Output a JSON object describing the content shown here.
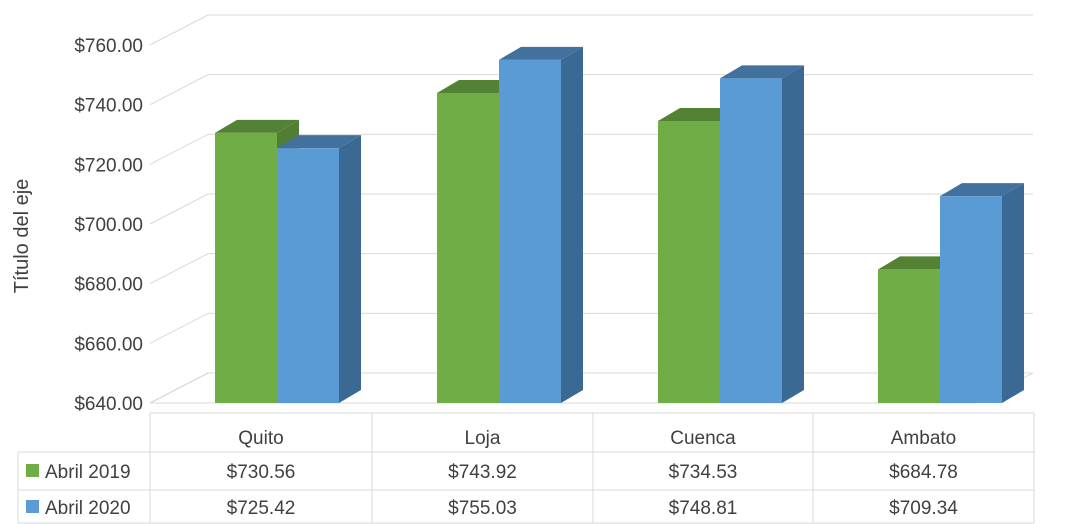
{
  "chart_data": {
    "type": "bar",
    "style": "3d-clustered-column-with-data-table",
    "categories": [
      "Quito",
      "Loja",
      "Cuenca",
      "Ambato"
    ],
    "series": [
      {
        "name": "Abril 2019",
        "values": [
          730.56,
          743.92,
          734.53,
          684.78
        ],
        "labels": [
          "$730.56",
          "$743.92",
          "$734.53",
          "$684.78"
        ],
        "color": "#70ad47",
        "side_color": "#507e32",
        "top_color": "#548235"
      },
      {
        "name": "Abril 2020",
        "values": [
          725.42,
          755.03,
          748.81,
          709.34
        ],
        "labels": [
          "$725.42",
          "$755.03",
          "$748.81",
          "$709.34"
        ],
        "color": "#5b9bd5",
        "side_color": "#3a6a94",
        "top_color": "#41719c"
      }
    ],
    "ylabel": "Título del eje",
    "ylim": [
      640,
      760
    ],
    "yticks": [
      640,
      660,
      680,
      700,
      720,
      740,
      760
    ],
    "ytick_labels": [
      "$640.00",
      "$660.00",
      "$680.00",
      "$700.00",
      "$720.00",
      "$740.00",
      "$760.00"
    ],
    "grid": true,
    "legend": "data-table-left"
  }
}
